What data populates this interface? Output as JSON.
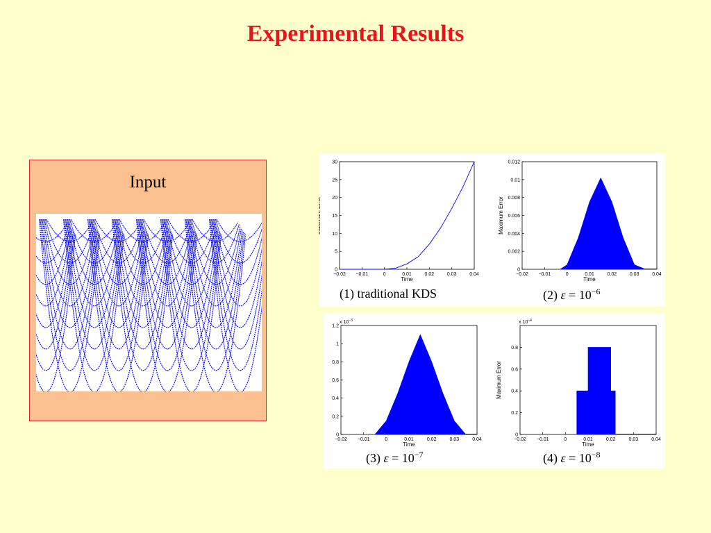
{
  "slide": {
    "title": "Experimental Results",
    "input_label": "Input",
    "colors": {
      "background": "#FFFFCC",
      "title": "#E8141B",
      "input_box": "#FAC090",
      "input_border": "#D2282A",
      "plot_line": "#0000FF"
    }
  },
  "input_figure": {
    "description_icon": "parabola-family-icon",
    "rows": 8,
    "columns": 9
  },
  "chart_data": [
    {
      "type": "line",
      "caption": "(1) traditional KDS",
      "xlabel": "Time",
      "ylabel": "Maximum Error",
      "xlim": [
        -0.02,
        0.04
      ],
      "ylim": [
        0,
        30
      ],
      "xticks": [
        "−0.02",
        "−0.01",
        "0",
        "0.01",
        "0.02",
        "0.03",
        "0.04"
      ],
      "yticks": [
        "0",
        "5",
        "10",
        "15",
        "20",
        "25",
        "30"
      ],
      "multiplier": "",
      "x": [
        -0.02,
        0.0,
        0.005,
        0.01,
        0.015,
        0.02,
        0.025,
        0.03,
        0.035,
        0.04
      ],
      "y": [
        0,
        0,
        0.3,
        1.5,
        3.5,
        7,
        11.5,
        17,
        23,
        30
      ]
    },
    {
      "type": "area",
      "caption_prefix": "(2) ",
      "caption_exp": "−6",
      "xlabel": "Time",
      "ylabel": "Maximum Error",
      "xlim": [
        -0.02,
        0.04
      ],
      "ylim": [
        0,
        0.012
      ],
      "xticks": [
        "−0.02",
        "−0.01",
        "0",
        "0.01",
        "0.02",
        "0.03",
        "0.04"
      ],
      "yticks": [
        "0",
        "0.002",
        "0.004",
        "0.006",
        "0.008",
        "0.01",
        "0.012"
      ],
      "multiplier": "",
      "x": [
        -0.003,
        0.0,
        0.005,
        0.01,
        0.015,
        0.02,
        0.025,
        0.03,
        0.035
      ],
      "y": [
        0,
        0.0005,
        0.0035,
        0.0075,
        0.0102,
        0.0075,
        0.0035,
        0.0005,
        0
      ]
    },
    {
      "type": "area",
      "caption_prefix": "(3) ",
      "caption_exp": "−7",
      "xlabel": "Time",
      "ylabel": "Maximum Error",
      "xlim": [
        -0.02,
        0.04
      ],
      "ylim": [
        0,
        1.2
      ],
      "xticks": [
        "−0.02",
        "−0.01",
        "0",
        "0.01",
        "0.02",
        "0.03",
        "0.04"
      ],
      "yticks": [
        "0",
        "0.2",
        "0.4",
        "0.6",
        "0.8",
        "1",
        "1.2"
      ],
      "multiplier": "x 10",
      "multiplier_exp": "−3",
      "x": [
        -0.005,
        0.0,
        0.005,
        0.01,
        0.015,
        0.02,
        0.025,
        0.03,
        0.035
      ],
      "y": [
        0,
        0.15,
        0.45,
        0.8,
        1.1,
        0.8,
        0.45,
        0.15,
        0
      ]
    },
    {
      "type": "area",
      "caption_prefix": "(4) ",
      "caption_exp": "−8",
      "xlabel": "Time",
      "ylabel": "Maximum Error",
      "xlim": [
        -0.02,
        0.04
      ],
      "ylim": [
        0,
        1
      ],
      "xticks": [
        "−0.02",
        "−0.01",
        "0",
        "0.01",
        "0.02",
        "0.03",
        "0.04"
      ],
      "yticks": [
        "0",
        "0.2",
        "0.4",
        "0.6",
        "0.8"
      ],
      "multiplier": "x 10",
      "multiplier_exp": "−4",
      "x": [
        0.005,
        0.005,
        0.01,
        0.01,
        0.02,
        0.02,
        0.022,
        0.022
      ],
      "y": [
        0,
        0.4,
        0.4,
        0.8,
        0.8,
        0.4,
        0.4,
        0
      ]
    }
  ]
}
